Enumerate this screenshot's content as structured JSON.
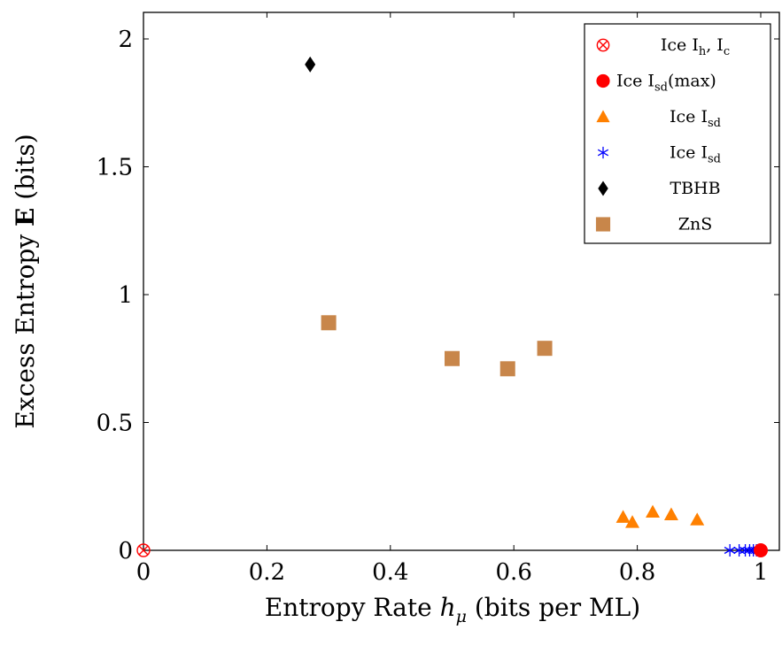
{
  "chart_data": {
    "type": "scatter",
    "title": "",
    "xlabel": {
      "prefix": "Entropy Rate ",
      "symbol": "h",
      "subscript": "μ",
      "suffix": " (bits per ML)"
    },
    "ylabel": {
      "prefix": "Excess Entropy ",
      "bold": "E",
      "suffix": " (bits)"
    },
    "xlim": [
      0,
      1
    ],
    "ylim": [
      0,
      2
    ],
    "x_ticks": [
      {
        "value": 0,
        "label": "0"
      },
      {
        "value": 0.2,
        "label": "0.2"
      },
      {
        "value": 0.4,
        "label": "0.4"
      },
      {
        "value": 0.6,
        "label": "0.6"
      },
      {
        "value": 0.8,
        "label": "0.8"
      },
      {
        "value": 1,
        "label": "1"
      }
    ],
    "y_ticks": [
      {
        "value": 0,
        "label": "0"
      },
      {
        "value": 0.5,
        "label": "0.5"
      },
      {
        "value": 1,
        "label": "1"
      },
      {
        "value": 1.5,
        "label": "1.5"
      },
      {
        "value": 2,
        "label": "2"
      }
    ],
    "grid": false,
    "legend_position": "top-right",
    "series": [
      {
        "id": "ice-ih-ic",
        "legend": {
          "text": "Ice I",
          "sub": "h",
          "text2": ", I",
          "sub2": "c"
        },
        "marker": "otimes",
        "color": "#ff0000",
        "points": [
          [
            0,
            0
          ]
        ]
      },
      {
        "id": "ice-isd-max",
        "legend": {
          "text": "Ice I",
          "sub": "sd",
          "text2": "(max)"
        },
        "marker": "circle",
        "color": "#ff0000",
        "points": [
          [
            1,
            0
          ]
        ]
      },
      {
        "id": "ice-isd-tri",
        "legend": {
          "text": "Ice I",
          "sub": "sd"
        },
        "marker": "triangle",
        "color": "#ff8000",
        "points": [
          [
            0.777,
            0.13
          ],
          [
            0.792,
            0.11
          ],
          [
            0.825,
            0.15
          ],
          [
            0.855,
            0.14
          ],
          [
            0.897,
            0.12
          ]
        ]
      },
      {
        "id": "ice-isd-star",
        "legend": {
          "text": "Ice I",
          "sub": "sd"
        },
        "marker": "asterisk",
        "color": "#0000ff",
        "points": [
          [
            0.95,
            0
          ],
          [
            0.965,
            0
          ],
          [
            0.975,
            0
          ],
          [
            0.982,
            0
          ],
          [
            0.988,
            0
          ],
          [
            0.993,
            0
          ],
          [
            0.997,
            0
          ]
        ]
      },
      {
        "id": "tbhb",
        "legend": {
          "text": "TBHB"
        },
        "marker": "diamond",
        "color": "#000000",
        "points": [
          [
            0.27,
            1.9
          ]
        ]
      },
      {
        "id": "zns",
        "legend": {
          "text": "ZnS"
        },
        "marker": "square",
        "color": "#c8864a",
        "points": [
          [
            0.3,
            0.89
          ],
          [
            0.5,
            0.75
          ],
          [
            0.59,
            0.71
          ],
          [
            0.65,
            0.79
          ]
        ]
      }
    ]
  }
}
